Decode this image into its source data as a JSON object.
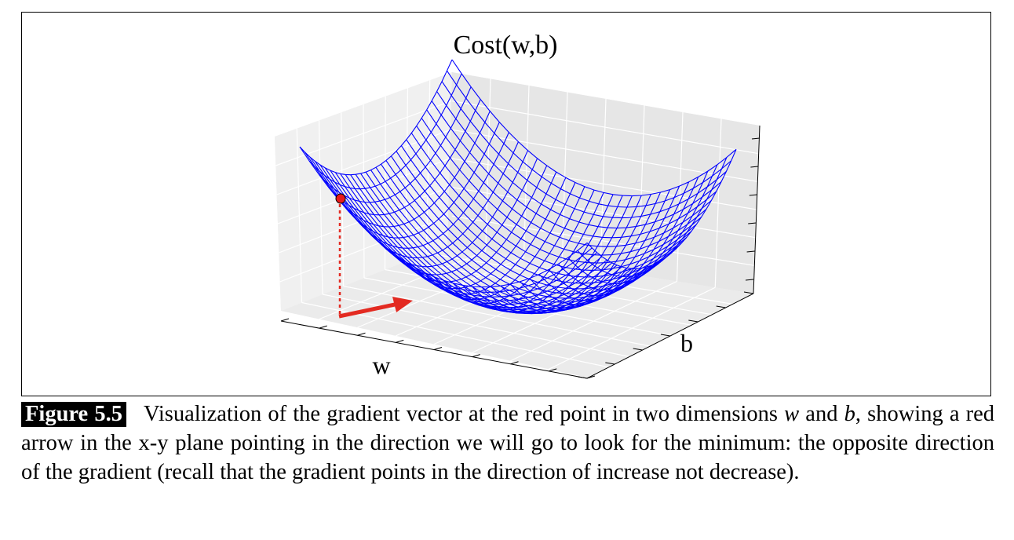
{
  "figure": {
    "title": "Cost(w,b)",
    "x_axis_label": "w",
    "y_axis_label": "b"
  },
  "chart_data": {
    "type": "surface3d",
    "title": "Cost(w,b)",
    "xlabel": "w",
    "ylabel": "b",
    "zlabel": "",
    "surface_color": "#0000ff",
    "marker_color": "#e8191b",
    "arrow_color": "#e32a21",
    "red_point": {
      "w": -1,
      "b": -1
    },
    "arrow_direction": "toward minimum (negative gradient)",
    "grid": true
  },
  "caption": {
    "label": "Figure 5.5",
    "seg1": "Visualization of the gradient vector at the red point in two dimensions ",
    "var_w": "w",
    "seg2": " and ",
    "var_b": "b",
    "seg3": ", showing a red arrow in the x-y plane pointing in the direction we will go to look for the minimum: the opposite direction of the gradient (recall that the gradient points in the direction of increase not decrease)."
  }
}
